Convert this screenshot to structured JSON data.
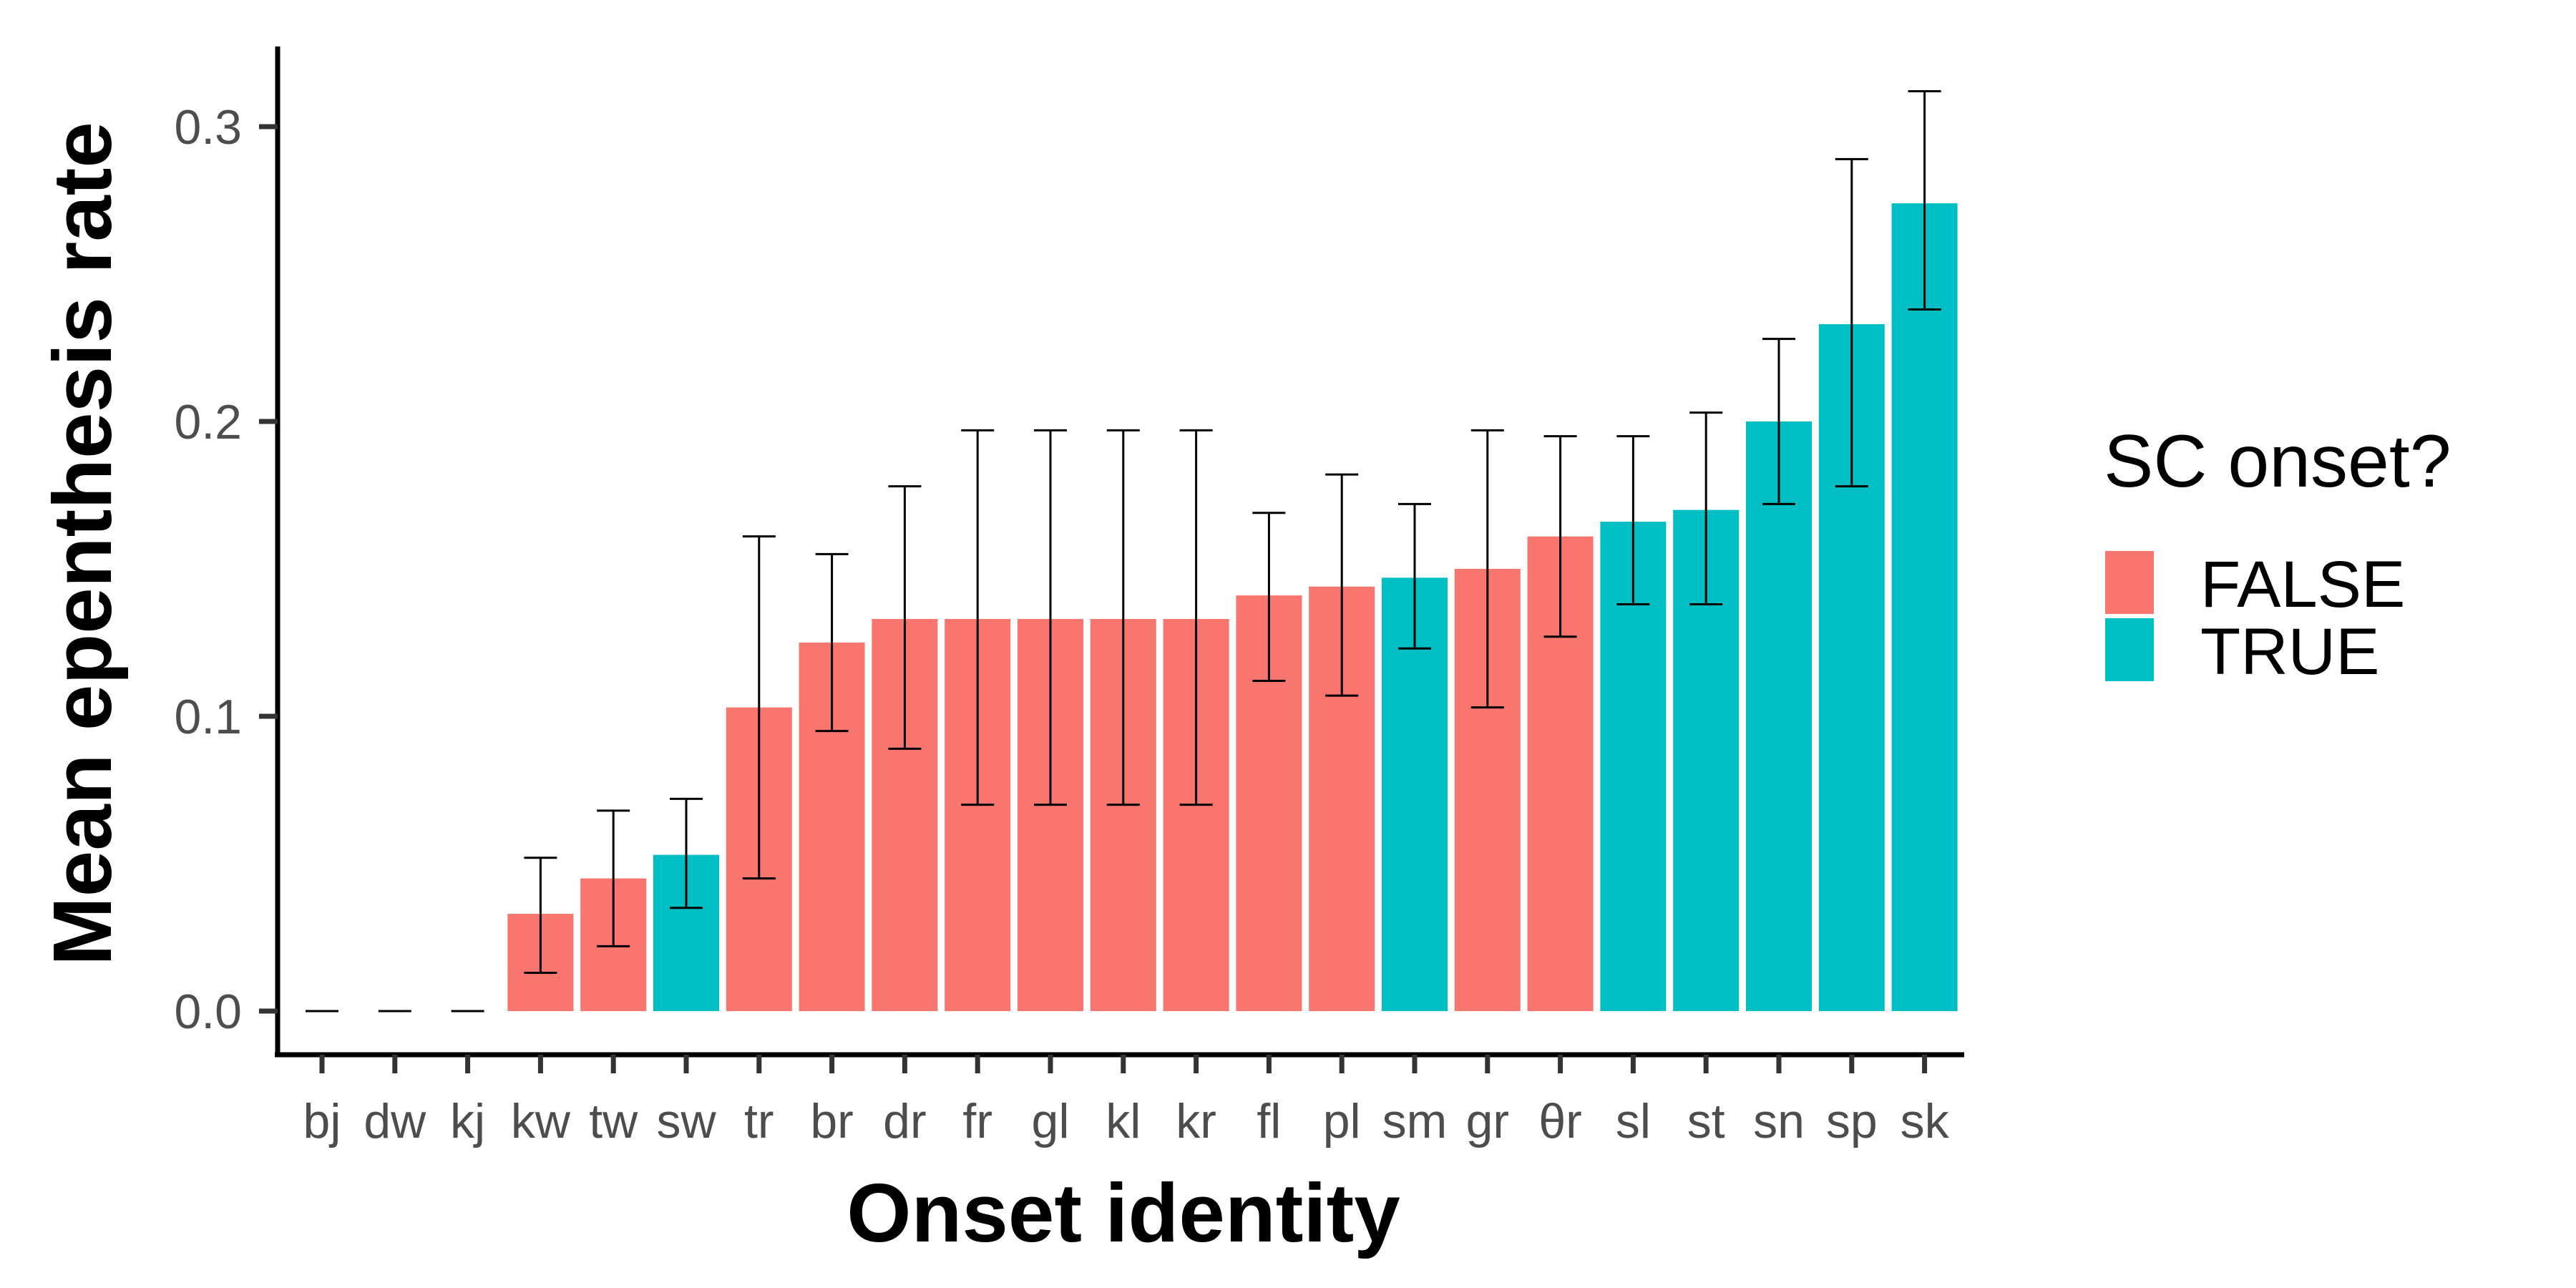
{
  "chart_data": {
    "type": "bar",
    "xlabel": "Onset identity",
    "ylabel": "Mean epenthesis rate",
    "ylim": [
      0,
      0.3
    ],
    "yticks": [
      "0.0",
      "0.1",
      "0.2",
      "0.3"
    ],
    "ytick_values": [
      0,
      0.1,
      0.2,
      0.3
    ],
    "grid": false,
    "legend": {
      "title": "SC onset?",
      "placement": "right",
      "entries": [
        {
          "label": "FALSE",
          "color": "#F8766D"
        },
        {
          "label": "TRUE",
          "color": "#00BFC4"
        }
      ]
    },
    "categories": [
      "bj",
      "dw",
      "kj",
      "kw",
      "tw",
      "sw",
      "tr",
      "br",
      "dr",
      "fr",
      "gl",
      "kl",
      "kr",
      "fl",
      "pl",
      "sm",
      "gr",
      "θr",
      "sl",
      "st",
      "sn",
      "sp",
      "sk"
    ],
    "values": [
      0,
      0,
      0,
      0.033,
      0.045,
      0.053,
      0.103,
      0.125,
      0.133,
      0.133,
      0.133,
      0.133,
      0.133,
      0.141,
      0.144,
      0.147,
      0.15,
      0.161,
      0.166,
      0.17,
      0.2,
      0.233,
      0.274
    ],
    "error_low": [
      0,
      0,
      0,
      0.013,
      0.022,
      0.035,
      0.045,
      0.095,
      0.089,
      0.07,
      0.07,
      0.07,
      0.07,
      0.112,
      0.107,
      0.123,
      0.103,
      0.127,
      0.138,
      0.138,
      0.172,
      0.178,
      0.238
    ],
    "error_high": [
      0,
      0,
      0,
      0.052,
      0.068,
      0.072,
      0.161,
      0.155,
      0.178,
      0.197,
      0.197,
      0.197,
      0.197,
      0.169,
      0.182,
      0.172,
      0.197,
      0.195,
      0.195,
      0.203,
      0.228,
      0.289,
      0.312
    ],
    "sc_onset": [
      false,
      false,
      false,
      false,
      false,
      true,
      false,
      false,
      false,
      false,
      false,
      false,
      false,
      false,
      false,
      true,
      false,
      false,
      true,
      true,
      true,
      true,
      true
    ]
  }
}
